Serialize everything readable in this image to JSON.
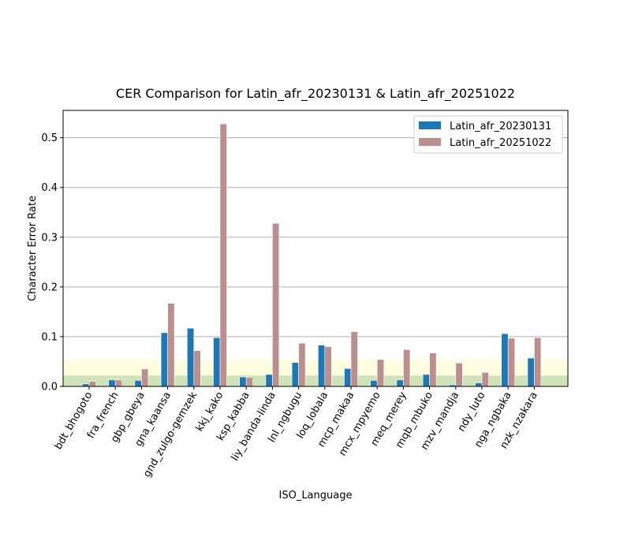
{
  "chart_data": {
    "type": "bar",
    "title": "CER Comparison for Latin_afr_20230131 & Latin_afr_20251022",
    "xlabel": "ISO_Language",
    "ylabel": "Character Error Rate",
    "ylim": [
      0,
      0.555
    ],
    "yticks": [
      0.0,
      0.1,
      0.2,
      0.3,
      0.4,
      0.5
    ],
    "ytick_labels": [
      "0.0",
      "0.1",
      "0.2",
      "0.3",
      "0.4",
      "0.5"
    ],
    "grid": "y",
    "legend_position": "upper-right",
    "bands": [
      {
        "from": 0,
        "to": 0.022,
        "color": "#cfe3b8"
      },
      {
        "from": 0.022,
        "to": 0.053,
        "color": "#ffffe0"
      }
    ],
    "categories": [
      "bdt_bhogoto",
      "fra_french",
      "gbp_gbeya",
      "gna_kaansa",
      "gnd_zulgo-gemzek",
      "kkj_kako",
      "ksp_kabba",
      "liy_banda-linda",
      "lnl_ngbugu",
      "loq_lobala",
      "mcp_makaa",
      "mcx_mpyemo",
      "meq_merey",
      "mqb_mbuko",
      "mzv_mandja",
      "ndy_luto",
      "nga_ngbaka",
      "nzk_nzakara"
    ],
    "series": [
      {
        "name": "Latin_afr_20230131",
        "color": "#1f77b4",
        "values": [
          0.005,
          0.013,
          0.012,
          0.108,
          0.117,
          0.098,
          0.019,
          0.024,
          0.048,
          0.083,
          0.036,
          0.012,
          0.013,
          0.024,
          0.003,
          0.007,
          0.106,
          0.057
        ]
      },
      {
        "name": "Latin_afr_20251022",
        "color": "#bc8f8f",
        "values": [
          0.01,
          0.013,
          0.035,
          0.167,
          0.072,
          0.528,
          0.018,
          0.328,
          0.087,
          0.08,
          0.11,
          0.054,
          0.074,
          0.067,
          0.047,
          0.028,
          0.097,
          0.098
        ]
      }
    ]
  }
}
